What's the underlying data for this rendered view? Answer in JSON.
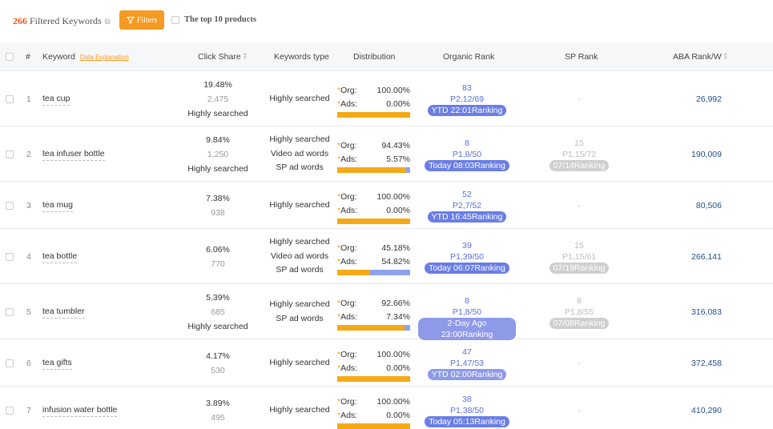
{
  "toolbar": {
    "count": "266",
    "count_label": "Filtered Keywords",
    "filters_label": "Filters",
    "top10_label": "The top 10 products"
  },
  "header": {
    "index": "#",
    "keyword": "Keyword",
    "data_explanation": "Data Explanation",
    "click_share": "Click Share",
    "keywords_type": "Keywords type",
    "distribution": "Distribution",
    "organic_rank": "Organic Rank",
    "sp_rank": "SP Rank",
    "aba_rank": "ABA Rank/W"
  },
  "labels": {
    "org": "Org:",
    "ads": "Ads:"
  },
  "colors": {
    "accent": "#f59a23",
    "org_bar": "#f5a916",
    "ads_bar": "#8da3ec",
    "rank_pill": "#6a7ee6"
  },
  "rows": [
    {
      "index": "1",
      "keyword": "tea cup",
      "click_pct": "19.48%",
      "click_num": "2,475",
      "click_type": "Highly searched",
      "types": [
        "Highly searched"
      ],
      "org_pct": "100.00%",
      "ads_pct": "0.00%",
      "org_fraction": 1.0,
      "org_rank": "83",
      "org_page": "P2,12/69",
      "org_pill": "YTD 22:01Ranking",
      "sp_rank": "",
      "sp_page": "",
      "sp_pill": "",
      "sp_dash": "-",
      "aba": "26,992"
    },
    {
      "index": "2",
      "keyword": "tea infuser bottle",
      "click_pct": "9.84%",
      "click_num": "1,250",
      "click_type": "Highly searched",
      "types": [
        "Highly searched",
        "Video ad words",
        "SP ad words"
      ],
      "org_pct": "94.43%",
      "ads_pct": "5.57%",
      "org_fraction": 0.9443,
      "org_rank": "8",
      "org_page": "P1,8/50",
      "org_pill": "Today 08:03Ranking",
      "sp_rank": "15",
      "sp_page": "P1,15/72",
      "sp_pill": "07/14Ranking",
      "sp_dash": "",
      "aba": "190,009"
    },
    {
      "index": "3",
      "keyword": "tea mug",
      "click_pct": "7.38%",
      "click_num": "938",
      "click_type": "",
      "types": [
        "Highly searched"
      ],
      "org_pct": "100.00%",
      "ads_pct": "0.00%",
      "org_fraction": 1.0,
      "org_rank": "52",
      "org_page": "P2,7/52",
      "org_pill": "YTD 16:45Ranking",
      "sp_rank": "",
      "sp_page": "",
      "sp_pill": "",
      "sp_dash": "-",
      "aba": "80,506"
    },
    {
      "index": "4",
      "keyword": "tea bottle",
      "click_pct": "6.06%",
      "click_num": "770",
      "click_type": "",
      "types": [
        "Highly searched",
        "Video ad words",
        "SP ad words"
      ],
      "org_pct": "45.18%",
      "ads_pct": "54.82%",
      "org_fraction": 0.4518,
      "org_rank": "39",
      "org_page": "P1,39/50",
      "org_pill": "Today 06:07Ranking",
      "sp_rank": "15",
      "sp_page": "P1,15/61",
      "sp_pill": "07/19Ranking",
      "sp_dash": "",
      "aba": "266,141"
    },
    {
      "index": "5",
      "keyword": "tea tumbler",
      "click_pct": "5.39%",
      "click_num": "685",
      "click_type": "Highly searched",
      "types": [
        "Highly searched",
        "SP ad words"
      ],
      "org_pct": "92.66%",
      "ads_pct": "7.34%",
      "org_fraction": 0.9266,
      "org_rank": "8",
      "org_page": "P1,8/50",
      "org_pill": "2-Day Ago 23:00Ranking",
      "sp_rank": "8",
      "sp_page": "P1,8/55",
      "sp_pill": "07/08Ranking",
      "sp_dash": "",
      "aba": "316,083"
    },
    {
      "index": "6",
      "keyword": "tea gifts",
      "click_pct": "4.17%",
      "click_num": "530",
      "click_type": "",
      "types": [
        "Highly searched"
      ],
      "org_pct": "100.00%",
      "ads_pct": "0.00%",
      "org_fraction": 1.0,
      "org_rank": "47",
      "org_page": "P1,47/53",
      "org_pill": "YTD 02:00Ranking",
      "sp_rank": "",
      "sp_page": "",
      "sp_pill": "",
      "sp_dash": "-",
      "aba": "372,458"
    },
    {
      "index": "7",
      "keyword": "infusion water bottle",
      "click_pct": "3.89%",
      "click_num": "495",
      "click_type": "",
      "types": [
        "Highly searched"
      ],
      "org_pct": "100.00%",
      "ads_pct": "0.00%",
      "org_fraction": 1.0,
      "org_rank": "38",
      "org_page": "P1,38/50",
      "org_pill": "Today 05:13Ranking",
      "sp_rank": "",
      "sp_page": "",
      "sp_pill": "",
      "sp_dash": "-",
      "aba": "410,290"
    }
  ]
}
